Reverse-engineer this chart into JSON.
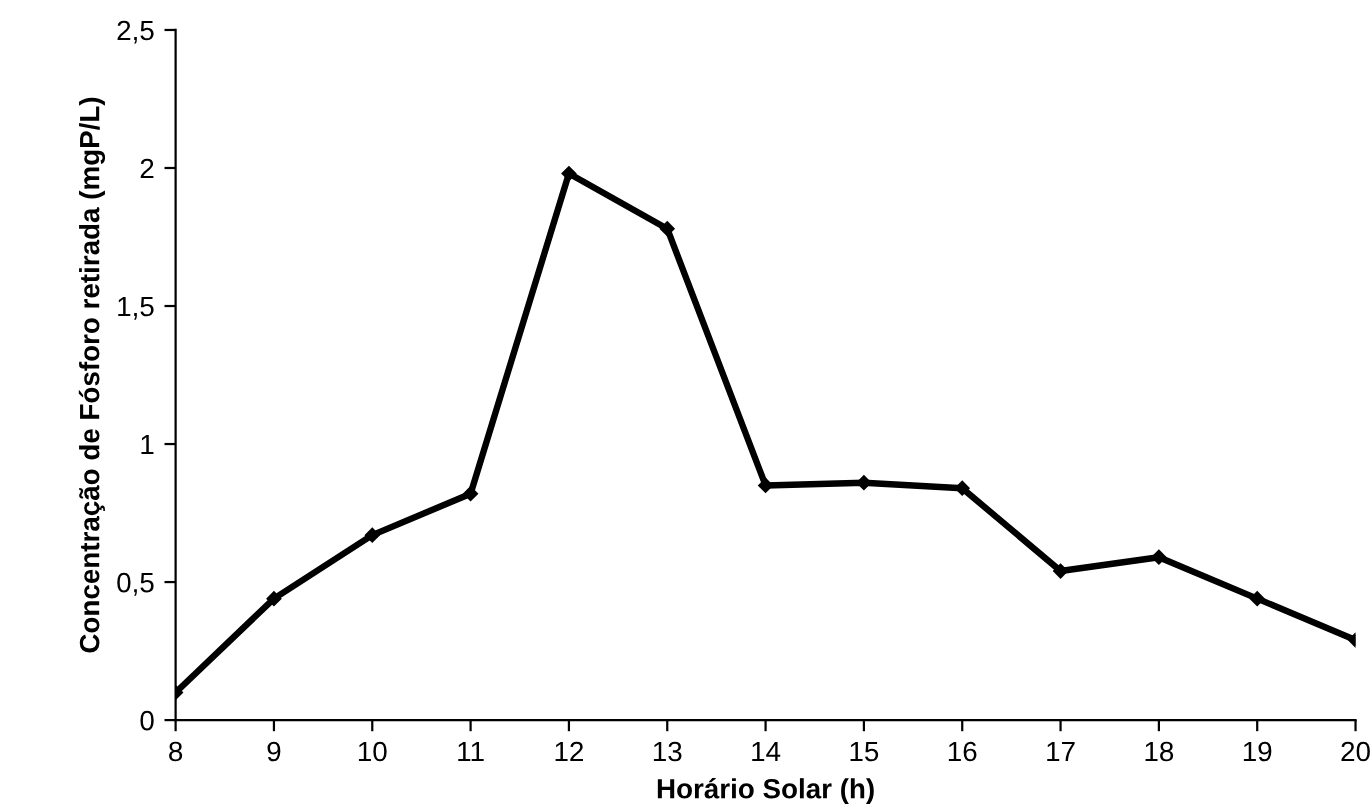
{
  "chart_data": {
    "type": "line",
    "xlabel": "Horário Solar (h)",
    "ylabel": "Concentração de Fósforo retirada (mgP/L)",
    "x": [
      8,
      9,
      10,
      11,
      12,
      13,
      14,
      15,
      16,
      17,
      18,
      19,
      20
    ],
    "series": [
      {
        "color": "#000000",
        "values": [
          0.1,
          0.44,
          0.67,
          0.82,
          1.98,
          1.78,
          0.85,
          0.86,
          0.84,
          0.54,
          0.59,
          0.44,
          0.29
        ]
      }
    ],
    "xlim": [
      8,
      20
    ],
    "xticks": [
      8,
      9,
      10,
      11,
      12,
      13,
      14,
      15,
      16,
      17,
      18,
      19,
      20
    ],
    "ylim": [
      0,
      2.5
    ],
    "yticks": [
      0,
      {
        "value": 0.5,
        "label": "0,5"
      },
      1,
      {
        "value": 1.5,
        "label": "1,5"
      },
      2,
      {
        "value": 2.5,
        "label": "2,5"
      }
    ],
    "grid": false,
    "legend": false,
    "marker": "diamond",
    "line_style": "solid"
  }
}
